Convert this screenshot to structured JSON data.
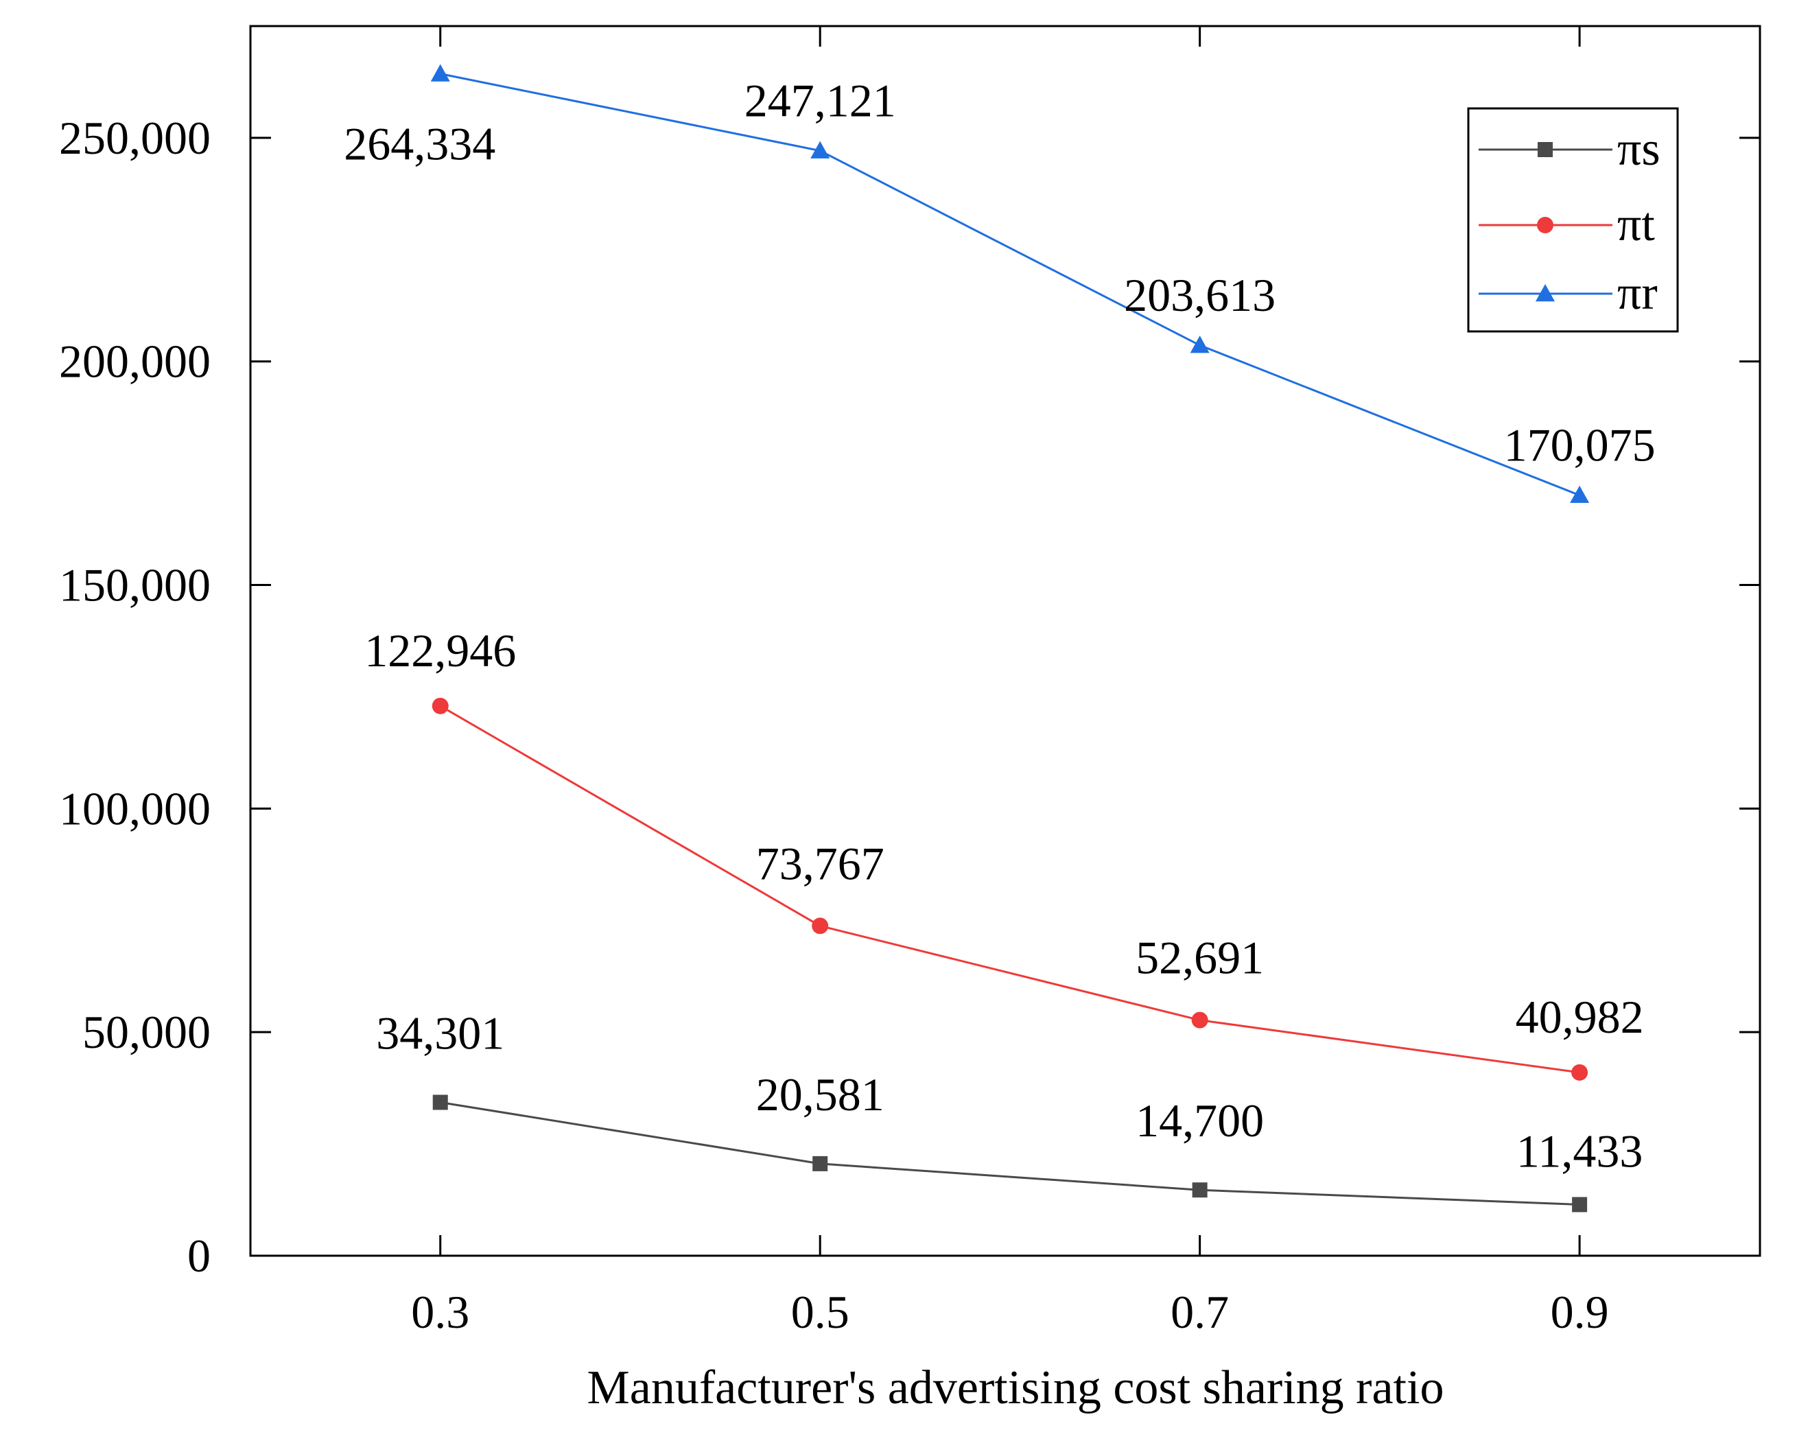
{
  "chart_data": {
    "type": "line",
    "title": "",
    "xlabel": "Manufacturer's advertising cost sharing ratio",
    "ylabel": "",
    "x": [
      0.3,
      0.5,
      0.7,
      0.9
    ],
    "x_tick_labels": [
      "0.3",
      "0.5",
      "0.7",
      "0.9"
    ],
    "xlim": [
      0.2,
      0.995
    ],
    "ylim": [
      0,
      275000
    ],
    "y_ticks": [
      0,
      50000,
      100000,
      150000,
      200000,
      250000
    ],
    "y_tick_labels": [
      "0",
      "50,000",
      "100,000",
      "150,000",
      "200,000",
      "250,000"
    ],
    "grid": false,
    "legend_position": "top-right",
    "series": [
      {
        "key": "s",
        "name": "πs",
        "color": "#4a4a4a",
        "marker": "square",
        "values": [
          34301,
          20581,
          14700,
          11433
        ],
        "labels": [
          "34,301",
          "20,581",
          "14,700",
          "11,433"
        ]
      },
      {
        "key": "t",
        "name": "πt",
        "color": "#ee3a3a",
        "marker": "circle",
        "values": [
          122946,
          73767,
          52691,
          40982
        ],
        "labels": [
          "122,946",
          "73,767",
          "52,691",
          "40,982"
        ]
      },
      {
        "key": "r",
        "name": "πr",
        "color": "#1f6fe0",
        "marker": "triangle",
        "values": [
          264334,
          247121,
          203613,
          170075
        ],
        "labels": [
          "264,334",
          "247,121",
          "203,613",
          "170,075"
        ]
      }
    ]
  }
}
